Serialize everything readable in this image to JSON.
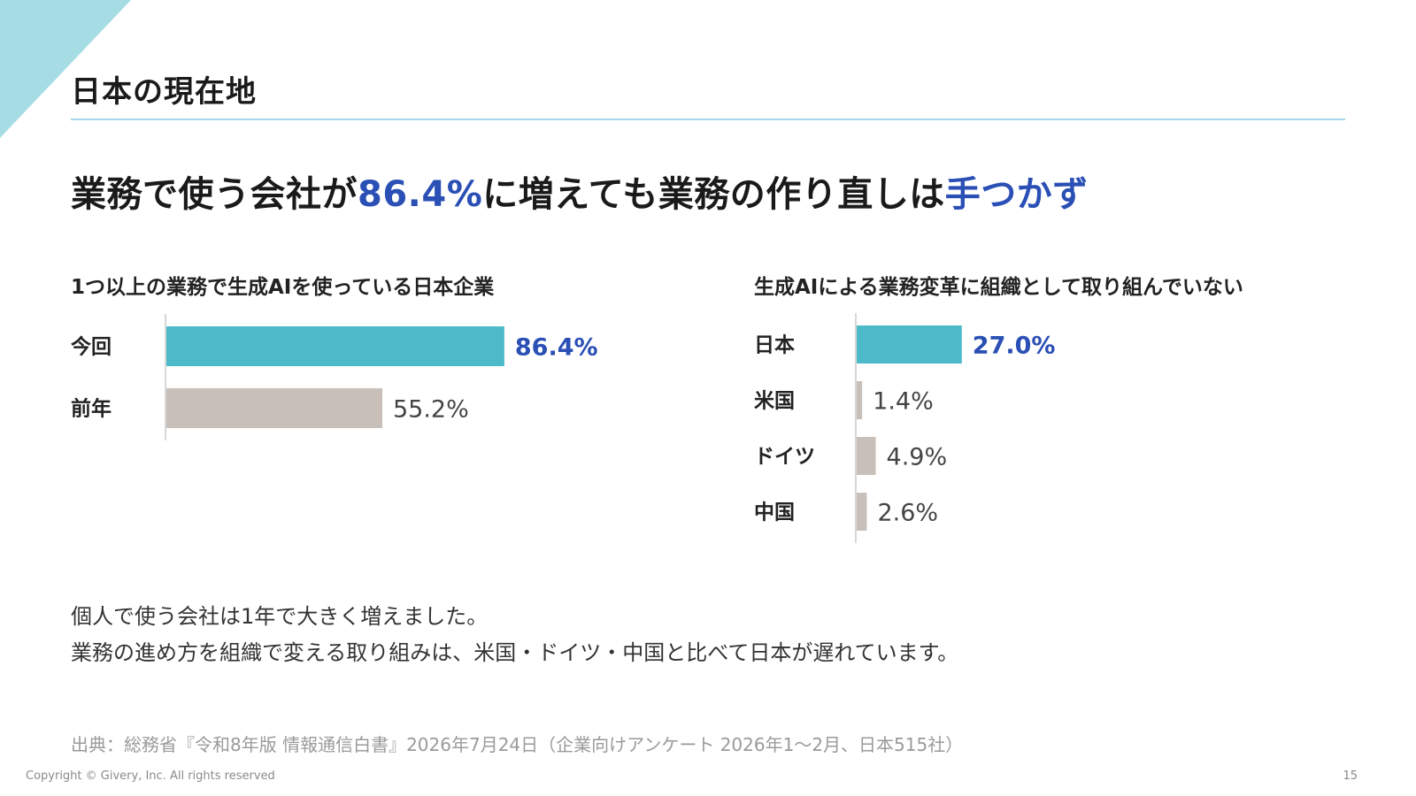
{
  "section_title": "日本の現在地",
  "headline": {
    "part1": "業務で使う会社が",
    "highlight1": "86.4%",
    "part2": "に増えても業務の作り直しは",
    "highlight2": "手つかず"
  },
  "body_text": {
    "line1": "個人で使う会社は1年で大きく増えました。",
    "line2": "業務の進め方を組織で変える取り組みは、米国・ドイツ・中国と比べて日本が遅れています。"
  },
  "source": "出典：総務省『令和8年版 情報通信白書』2026年7月24日（企業向けアンケート 2026年1〜2月、日本515社）",
  "footer": {
    "copyright": "Copyright © Givery, Inc. All rights reserved",
    "page_number": "15"
  },
  "colors": {
    "accent_teal": "#4cbac8",
    "bar_gray": "#c8c0b8",
    "highlight_blue": "#2a4fb5",
    "rule_blue": "#a8d8ea",
    "corner_teal": "#a6dde4",
    "axis_gray": "#cccccc"
  },
  "chart_data": [
    {
      "type": "bar",
      "orientation": "horizontal",
      "title": "1つ以上の業務で生成AIを使っている日本企業",
      "categories": [
        "今回",
        "前年"
      ],
      "values": [
        86.4,
        55.2
      ],
      "value_labels": [
        "86.4%",
        "55.2%"
      ],
      "highlight_index": 0,
      "xlim": [
        0,
        100
      ],
      "grid": false
    },
    {
      "type": "bar",
      "orientation": "horizontal",
      "title": "生成AIによる業務変革に組織として取り組んでいない",
      "categories": [
        "日本",
        "米国",
        "ドイツ",
        "中国"
      ],
      "values": [
        27.0,
        1.4,
        4.9,
        2.6
      ],
      "value_labels": [
        "27.0%",
        "1.4%",
        "4.9%",
        "2.6%"
      ],
      "highlight_index": 0,
      "xlim": [
        0,
        100
      ],
      "grid": false
    }
  ]
}
